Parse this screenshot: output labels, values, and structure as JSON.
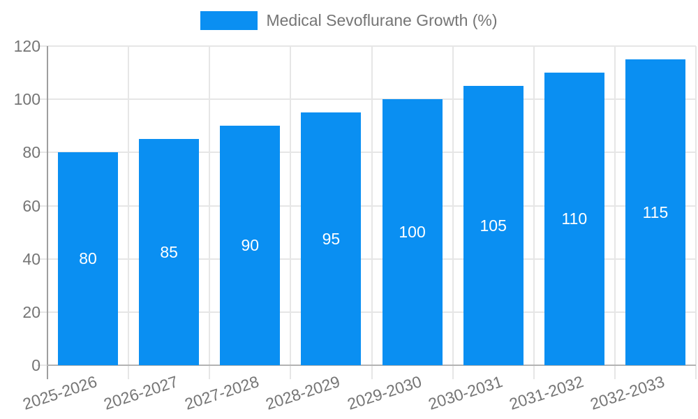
{
  "legend": {
    "label": "Medical Sevoflurane Growth (%)"
  },
  "colors": {
    "bar": "#0a8ff2",
    "axis_text": "#757575",
    "bar_label_text": "#ffffff",
    "grid_line": "#e6e6e6",
    "y_axis_line": "#9e9e9e",
    "x_axis_line": "#b3b3b3",
    "background": "#ffffff"
  },
  "chart_data": {
    "type": "bar",
    "title": "Medical Sevoflurane Growth (%)",
    "categories": [
      "2025-2026",
      "2026-2027",
      "2027-2028",
      "2028-2029",
      "2029-2030",
      "2030-2031",
      "2031-2032",
      "2032-2033"
    ],
    "values": [
      80,
      85,
      90,
      95,
      100,
      105,
      110,
      115
    ],
    "xlabel": "",
    "ylabel": "",
    "ylim": [
      0,
      120
    ],
    "yticks": [
      0,
      20,
      40,
      60,
      80,
      100,
      120
    ],
    "grid": true,
    "legend_position": "top-center",
    "bar_value_labels_shown": true,
    "bar_value_label_position": "center",
    "x_tick_rotation_deg": -18
  }
}
